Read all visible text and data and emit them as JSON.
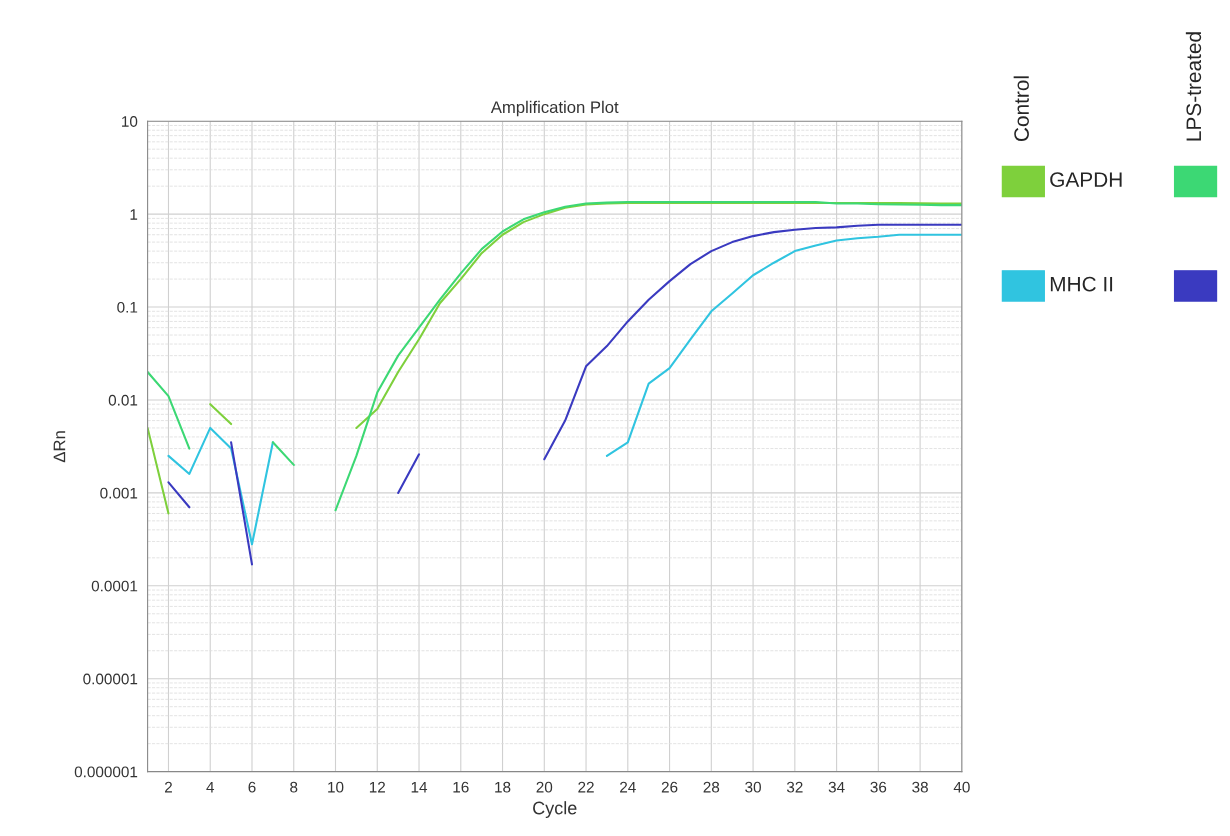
{
  "chart_data": {
    "type": "line",
    "title": "Amplification Plot",
    "xlabel": "Cycle",
    "ylabel": "ΔRn",
    "log": "y",
    "grid": true,
    "legend": "right",
    "marker": "none",
    "line_style": "solid",
    "x": [
      1,
      2,
      3,
      4,
      5,
      6,
      7,
      8,
      9,
      10,
      11,
      12,
      13,
      14,
      15,
      16,
      17,
      18,
      19,
      20,
      21,
      22,
      23,
      24,
      25,
      26,
      27,
      28,
      29,
      30,
      31,
      32,
      33,
      34,
      35,
      36,
      37,
      38,
      39,
      40
    ],
    "xlim": [
      1,
      40
    ],
    "xticks": [
      2,
      4,
      6,
      8,
      10,
      12,
      14,
      16,
      18,
      20,
      22,
      24,
      26,
      28,
      30,
      32,
      34,
      36,
      38,
      40
    ],
    "ylim": [
      1e-06,
      10
    ],
    "yticks": [
      {
        "value": 1e-06,
        "label": "0.000001"
      },
      {
        "value": 1e-05,
        "label": "0.00001"
      },
      {
        "value": 0.0001,
        "label": "0.0001"
      },
      {
        "value": 0.001,
        "label": "0.001"
      },
      {
        "value": 0.01,
        "label": "0.01"
      },
      {
        "value": 0.1,
        "label": "0.1"
      },
      {
        "value": 1,
        "label": "1"
      },
      {
        "value": 10,
        "label": "10"
      }
    ],
    "annotations": [
      "Control",
      "LPS-treated"
    ],
    "series": [
      {
        "name": "GAPDH",
        "color": "#7ed03c",
        "values": [
          0.005,
          0.0006,
          null,
          0.009,
          0.0055,
          null,
          null,
          null,
          null,
          null,
          0.005,
          0.008,
          0.02,
          0.045,
          0.11,
          0.2,
          0.38,
          0.6,
          0.82,
          1.0,
          1.17,
          1.27,
          1.3,
          1.32,
          1.32,
          1.32,
          1.32,
          1.32,
          1.32,
          1.32,
          1.32,
          1.32,
          1.32,
          1.32,
          1.32,
          1.32,
          1.32,
          1.31,
          1.3,
          1.3
        ]
      },
      {
        "name": "MHC II",
        "color": "#30c4e0",
        "values": [
          null,
          0.0025,
          0.0016,
          0.005,
          0.003,
          0.00028,
          0.0035,
          null,
          null,
          null,
          null,
          null,
          null,
          null,
          null,
          null,
          null,
          null,
          null,
          null,
          null,
          null,
          0.0025,
          0.0035,
          0.015,
          0.022,
          0.045,
          0.09,
          0.14,
          0.22,
          0.3,
          0.4,
          0.46,
          0.52,
          0.55,
          0.57,
          0.6,
          0.6,
          0.6,
          0.6
        ]
      },
      {
        "color": "#3cd874",
        "values": [
          0.02,
          0.011,
          0.003,
          null,
          null,
          null,
          0.0035,
          0.002,
          null,
          0.00065,
          0.0025,
          0.012,
          0.03,
          0.06,
          0.12,
          0.23,
          0.42,
          0.65,
          0.88,
          1.05,
          1.2,
          1.3,
          1.33,
          1.35,
          1.35,
          1.35,
          1.35,
          1.35,
          1.35,
          1.35,
          1.35,
          1.35,
          1.35,
          1.3,
          1.3,
          1.28,
          1.27,
          1.26,
          1.25,
          1.25
        ]
      },
      {
        "color": "#3a3ac0",
        "values": [
          null,
          0.0013,
          0.0007,
          null,
          0.0035,
          0.00017,
          null,
          null,
          null,
          null,
          null,
          null,
          0.001,
          0.0026,
          null,
          null,
          null,
          null,
          null,
          0.0023,
          0.006,
          0.023,
          0.038,
          0.07,
          0.12,
          0.19,
          0.29,
          0.4,
          0.5,
          0.58,
          0.64,
          0.68,
          0.71,
          0.72,
          0.75,
          0.77,
          0.77,
          0.77,
          0.77,
          0.77
        ]
      }
    ]
  }
}
